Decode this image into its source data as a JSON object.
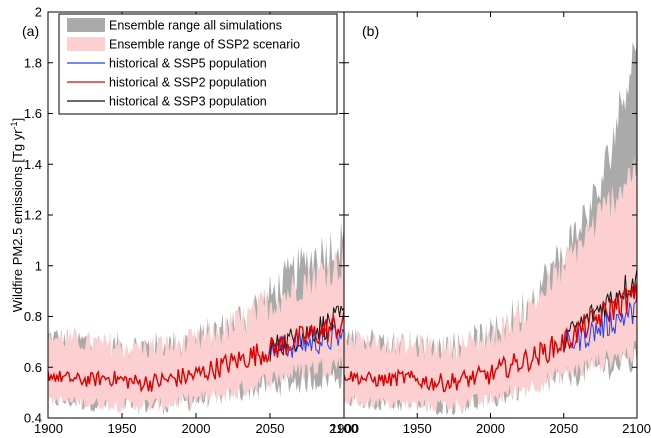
{
  "chart_data": {
    "type": "line",
    "ylabel": "Wildfire PM2.5 emissions [Tg yr",
    "ylabel_sup": "-1",
    "ylabel_close": "]",
    "xlim": [
      1900,
      2100
    ],
    "ylim": [
      0.4,
      2.0
    ],
    "xticks": [
      "1900",
      "1950",
      "2000",
      "2050",
      "2100"
    ],
    "xtick_values": [
      1900,
      1950,
      2000,
      2050,
      2100
    ],
    "yticks": [
      "0.4",
      "0.6",
      "0.8",
      "1",
      "1.2",
      "1.4",
      "1.6",
      "1.8",
      "2"
    ],
    "ytick_values": [
      0.4,
      0.6,
      0.8,
      1.0,
      1.2,
      1.4,
      1.6,
      1.8,
      2.0
    ],
    "grid": false,
    "legend_placement": "top-left",
    "legend": [
      {
        "label": "Ensemble range all simulations",
        "kind": "band",
        "color": "#aaaaaa"
      },
      {
        "label": "Ensemble range of SSP2 scenario",
        "kind": "band",
        "color": "#fcd0d0"
      },
      {
        "label": "historical & SSP5 population",
        "kind": "line",
        "color": "#1f3fff"
      },
      {
        "label": "historical & SSP2 population",
        "kind": "line",
        "color": "#dd0000"
      },
      {
        "label": "historical & SSP3 population",
        "kind": "line",
        "color": "#111111"
      }
    ],
    "panels": [
      {
        "label": "(a)",
        "series": {
          "historical & SSP2 population": {
            "x": [
              1900,
              1910,
              1920,
              1930,
              1940,
              1950,
              1960,
              1970,
              1980,
              1990,
              2000,
              2010,
              2020,
              2030,
              2040,
              2050,
              2060,
              2070,
              2080,
              2090,
              2100
            ],
            "y": [
              0.57,
              0.56,
              0.55,
              0.55,
              0.56,
              0.55,
              0.54,
              0.54,
              0.55,
              0.56,
              0.57,
              0.59,
              0.61,
              0.63,
              0.65,
              0.67,
              0.69,
              0.71,
              0.73,
              0.75,
              0.77
            ]
          },
          "historical & SSP5 population": {
            "x": [
              2050,
              2060,
              2070,
              2080,
              2090,
              2100
            ],
            "y": [
              0.67,
              0.68,
              0.69,
              0.7,
              0.71,
              0.72
            ]
          },
          "historical & SSP3 population": {
            "x": [
              2050,
              2060,
              2070,
              2080,
              2090,
              2100
            ],
            "y": [
              0.67,
              0.7,
              0.72,
              0.75,
              0.77,
              0.8
            ]
          }
        },
        "range_ssp2": {
          "x": [
            1900,
            1925,
            1950,
            1975,
            2000,
            2025,
            2050,
            2075,
            2100
          ],
          "lower": [
            0.47,
            0.46,
            0.45,
            0.45,
            0.47,
            0.5,
            0.55,
            0.59,
            0.62
          ],
          "upper": [
            0.72,
            0.7,
            0.68,
            0.68,
            0.7,
            0.76,
            0.85,
            0.95,
            1.02
          ]
        },
        "range_all": {
          "x": [
            1900,
            1925,
            1950,
            1975,
            2000,
            2025,
            2050,
            2075,
            2100
          ],
          "lower": [
            0.47,
            0.46,
            0.45,
            0.45,
            0.47,
            0.5,
            0.53,
            0.55,
            0.57
          ],
          "upper": [
            0.72,
            0.7,
            0.68,
            0.68,
            0.7,
            0.77,
            0.88,
            1.02,
            1.1
          ]
        }
      },
      {
        "label": "(b)",
        "series": {
          "historical & SSP2 population": {
            "x": [
              1900,
              1910,
              1920,
              1930,
              1940,
              1950,
              1960,
              1970,
              1980,
              1990,
              2000,
              2010,
              2020,
              2030,
              2040,
              2050,
              2060,
              2070,
              2080,
              2090,
              2100
            ],
            "y": [
              0.57,
              0.56,
              0.55,
              0.55,
              0.56,
              0.55,
              0.54,
              0.54,
              0.55,
              0.56,
              0.57,
              0.6,
              0.62,
              0.64,
              0.67,
              0.7,
              0.74,
              0.78,
              0.82,
              0.86,
              0.88
            ]
          },
          "historical & SSP5 population": {
            "x": [
              2050,
              2060,
              2070,
              2080,
              2090,
              2100
            ],
            "y": [
              0.69,
              0.71,
              0.74,
              0.77,
              0.8,
              0.82
            ]
          },
          "historical & SSP3 population": {
            "x": [
              2050,
              2060,
              2070,
              2080,
              2090,
              2100
            ],
            "y": [
              0.71,
              0.76,
              0.81,
              0.86,
              0.91,
              0.95
            ]
          }
        },
        "range_ssp2": {
          "x": [
            1900,
            1925,
            1950,
            1975,
            2000,
            2025,
            2050,
            2075,
            2100
          ],
          "lower": [
            0.47,
            0.46,
            0.45,
            0.45,
            0.47,
            0.52,
            0.57,
            0.62,
            0.66
          ],
          "upper": [
            0.72,
            0.7,
            0.68,
            0.68,
            0.72,
            0.82,
            1.0,
            1.2,
            1.4
          ]
        },
        "range_all": {
          "x": [
            1900,
            1925,
            1950,
            1975,
            2000,
            2025,
            2050,
            2075,
            2100
          ],
          "lower": [
            0.47,
            0.46,
            0.45,
            0.45,
            0.47,
            0.52,
            0.56,
            0.6,
            0.62
          ],
          "upper": [
            0.72,
            0.7,
            0.68,
            0.68,
            0.72,
            0.85,
            1.05,
            1.3,
            1.9
          ]
        }
      }
    ]
  }
}
